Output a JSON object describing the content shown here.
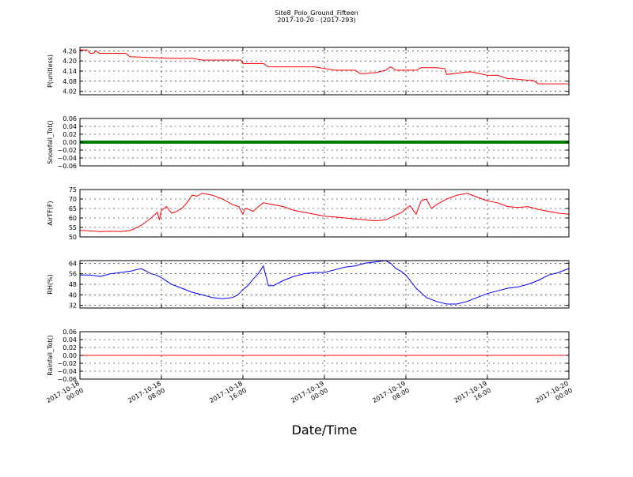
{
  "chart_data": {
    "type": "line",
    "title": "Site8_Polo_Ground_Fifteen",
    "subtitle": "2017-10-20 - (2017-293)",
    "xlabel": "Date/Time",
    "grid": true,
    "x_ticks": [
      [
        "2017-10-18",
        "00:00"
      ],
      [
        "2017-10-18",
        "08:00"
      ],
      [
        "2017-10-18",
        "16:00"
      ],
      [
        "2017-10-19",
        "00:00"
      ],
      [
        "2017-10-19",
        "08:00"
      ],
      [
        "2017-10-19",
        "16:00"
      ],
      [
        "2017-10-20",
        "00:00"
      ]
    ],
    "xlim_hours": [
      0,
      48
    ],
    "panels": [
      {
        "ylabel": "P(unitless)",
        "color": "#ff0000",
        "ylim": [
          4.0,
          4.28
        ],
        "yticks": [
          "4.26",
          "4.20",
          "4.14",
          "4.08",
          "4.02"
        ],
        "ytick_values": [
          4.26,
          4.2,
          4.14,
          4.08,
          4.02
        ],
        "x": [
          0,
          0.7,
          1,
          1.3,
          1.6,
          1.9,
          2.5,
          4.5,
          4.9,
          9,
          11,
          12,
          14,
          15.8,
          16,
          18,
          18.5,
          20,
          23,
          25,
          26,
          27,
          27.5,
          28,
          28.6,
          29,
          30,
          30.5,
          31,
          33,
          33.5,
          34,
          35,
          35.8,
          36,
          38,
          38.5,
          40,
          40.5,
          41,
          42,
          42.5,
          44,
          44.5,
          45,
          46.5,
          48
        ],
        "y": [
          4.265,
          4.265,
          4.245,
          4.245,
          4.26,
          4.245,
          4.245,
          4.245,
          4.225,
          4.215,
          4.215,
          4.205,
          4.205,
          4.205,
          4.185,
          4.185,
          4.165,
          4.165,
          4.165,
          4.145,
          4.145,
          4.145,
          4.125,
          4.125,
          4.13,
          4.13,
          4.145,
          4.165,
          4.145,
          4.145,
          4.16,
          4.16,
          4.16,
          4.155,
          4.12,
          4.135,
          4.135,
          4.115,
          4.115,
          4.115,
          4.095,
          4.095,
          4.085,
          4.085,
          4.065,
          4.065,
          4.065
        ]
      },
      {
        "ylabel": "Snowfall_Tot()",
        "color": "#008000",
        "ylim": [
          -0.06,
          0.06
        ],
        "yticks": [
          "0.06",
          "0.04",
          "0.02",
          "0.00",
          "−0.02",
          "−0.04",
          "−0.06"
        ],
        "ytick_values": [
          0.06,
          0.04,
          0.02,
          0.0,
          -0.02,
          -0.04,
          -0.06
        ],
        "x": [
          0,
          48
        ],
        "y": [
          0,
          0
        ]
      },
      {
        "ylabel": "AirTF(F)",
        "color": "#ff0000",
        "ylim": [
          50,
          75
        ],
        "yticks": [
          "75",
          "70",
          "65",
          "60",
          "55",
          "50"
        ],
        "ytick_values": [
          75,
          70,
          65,
          60,
          55,
          50
        ],
        "x": [
          0,
          1,
          2,
          3,
          4,
          5,
          6,
          7,
          7.6,
          7.8,
          8,
          8.5,
          9,
          9.5,
          10,
          10.5,
          11,
          11.5,
          12,
          12.5,
          13,
          14,
          15,
          15.6,
          16,
          16.2,
          16.6,
          17,
          17.3,
          18,
          19,
          20,
          21,
          22,
          23,
          24,
          25,
          26,
          27,
          28,
          29,
          30,
          31,
          31.6,
          32,
          32.4,
          33,
          33.5,
          34,
          34.5,
          35,
          36,
          37,
          38,
          39,
          40,
          41,
          42,
          43,
          44,
          45,
          46,
          47,
          48
        ],
        "y": [
          53.5,
          53.2,
          52.8,
          53,
          52.8,
          53.5,
          56,
          60,
          63,
          59,
          64,
          66,
          62.5,
          63.5,
          65,
          68,
          72,
          71.5,
          73,
          72.5,
          72,
          70,
          67,
          66,
          62,
          65,
          64.5,
          63.5,
          65,
          68,
          67,
          66,
          64,
          63,
          62,
          61,
          60.5,
          60,
          59.5,
          59,
          58.5,
          59,
          61.5,
          63,
          65,
          66.5,
          62,
          69,
          70,
          65,
          67,
          70,
          72,
          73,
          71,
          69,
          68,
          66,
          65.5,
          66,
          64.5,
          63.5,
          62.5,
          62
        ]
      },
      {
        "ylabel": "RH(%)",
        "color": "#0000ff",
        "ylim": [
          30,
          66
        ],
        "yticks": [
          "64",
          "56",
          "48",
          "40",
          "32"
        ],
        "ytick_values": [
          64,
          56,
          48,
          40,
          32
        ],
        "x": [
          0,
          1,
          2,
          3,
          4,
          5,
          6,
          6.5,
          7,
          7.5,
          8,
          9,
          10,
          11,
          12,
          13,
          14,
          15,
          15.5,
          16,
          16.5,
          17,
          17.5,
          18,
          18.5,
          19,
          20,
          21,
          22,
          23,
          24,
          25,
          26,
          27,
          28,
          29,
          30,
          30.5,
          31,
          31.5,
          32,
          33,
          34,
          35,
          36,
          37,
          38,
          39,
          40,
          41,
          42,
          43,
          44,
          45,
          46,
          47,
          48
        ],
        "y": [
          55,
          55,
          54,
          56,
          57,
          58,
          60,
          58,
          56,
          55,
          53,
          48,
          45,
          42,
          40,
          38,
          37,
          38,
          40,
          44,
          47,
          52,
          56,
          62,
          47,
          47,
          51,
          54,
          56,
          57,
          57,
          59,
          61,
          62,
          64,
          65,
          66,
          64,
          60,
          58,
          55,
          45,
          38,
          35,
          33,
          33,
          35,
          38,
          41,
          43,
          45,
          46,
          48,
          51,
          55,
          57,
          60
        ]
      },
      {
        "ylabel": "Rainfall_Tot()",
        "color": "#ff0000",
        "ylim": [
          -0.06,
          0.06
        ],
        "yticks": [
          "0.06",
          "0.04",
          "0.02",
          "0.00",
          "−0.02",
          "−0.04",
          "−0.06"
        ],
        "ytick_values": [
          0.06,
          0.04,
          0.02,
          0.0,
          -0.02,
          -0.04,
          -0.06
        ],
        "x": [
          0,
          48
        ],
        "y": [
          0,
          0
        ]
      }
    ]
  }
}
